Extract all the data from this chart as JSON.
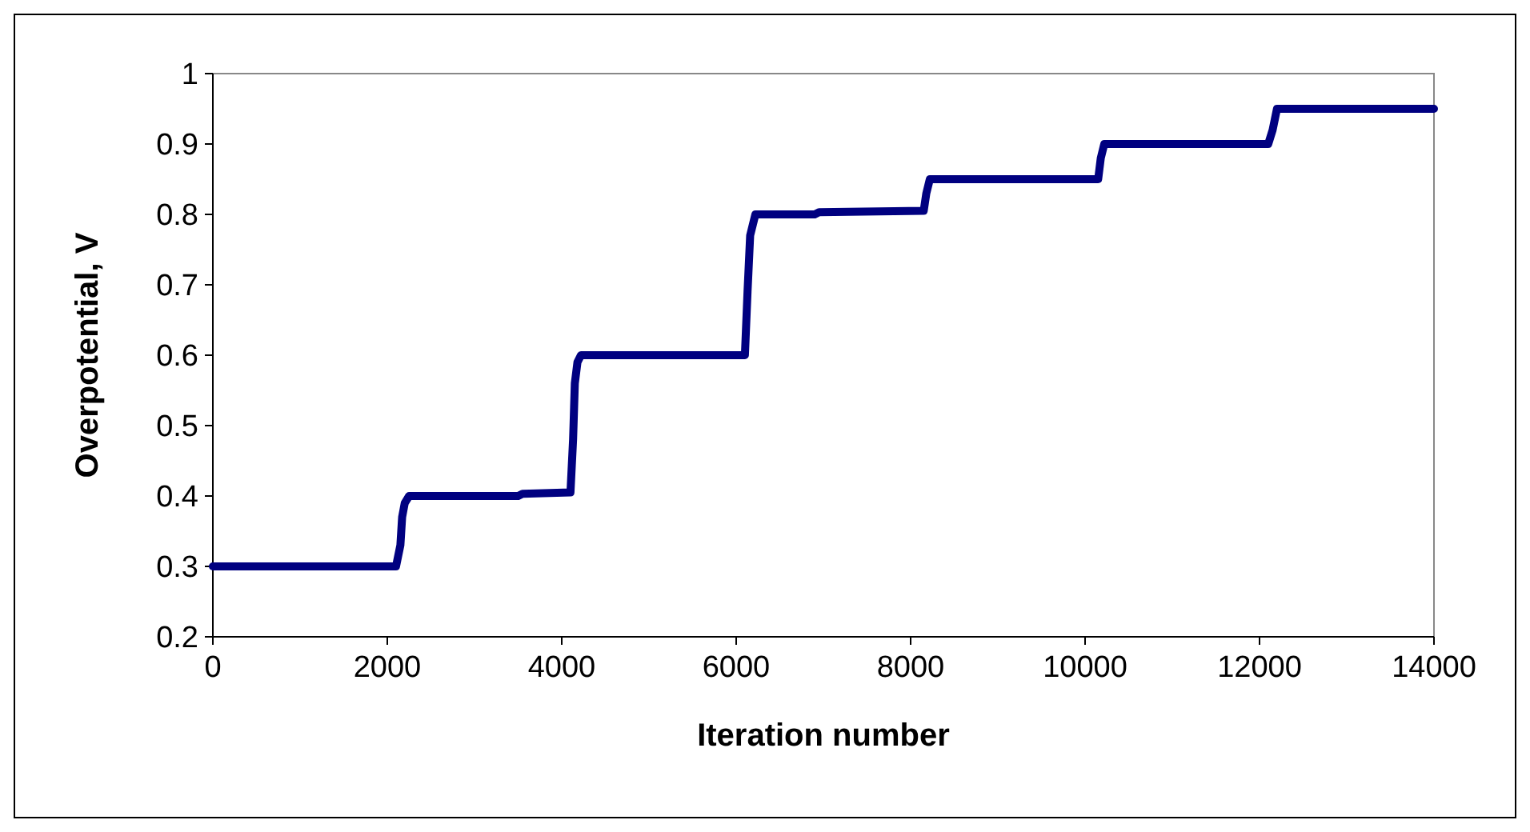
{
  "chart_data": {
    "type": "line",
    "xlabel": "Iteration number",
    "ylabel": "Overpotential, V",
    "xlim": [
      0,
      14000
    ],
    "xticks": [
      0,
      2000,
      4000,
      6000,
      8000,
      10000,
      12000,
      14000
    ],
    "ylim": [
      0.2,
      1
    ],
    "yticks": [
      0.2,
      0.3,
      0.4,
      0.5,
      0.6,
      0.7,
      0.8,
      0.9,
      1
    ],
    "grid": false,
    "marker": "none",
    "line_style": "solid",
    "series": [
      {
        "color": "#000080",
        "x": [
          0,
          2100,
          2150,
          2170,
          2200,
          2250,
          3500,
          3550,
          4100,
          4130,
          4150,
          4180,
          4220,
          6100,
          6130,
          6160,
          6200,
          6220,
          6900,
          6950,
          8150,
          8180,
          8220,
          10150,
          10180,
          10220,
          12100,
          12150,
          12200,
          14000
        ],
        "values": [
          0.3,
          0.3,
          0.33,
          0.37,
          0.39,
          0.4,
          0.4,
          0.403,
          0.405,
          0.48,
          0.56,
          0.59,
          0.6,
          0.6,
          0.69,
          0.77,
          0.79,
          0.8,
          0.8,
          0.803,
          0.805,
          0.83,
          0.85,
          0.85,
          0.88,
          0.9,
          0.9,
          0.92,
          0.95,
          0.95
        ]
      }
    ]
  }
}
